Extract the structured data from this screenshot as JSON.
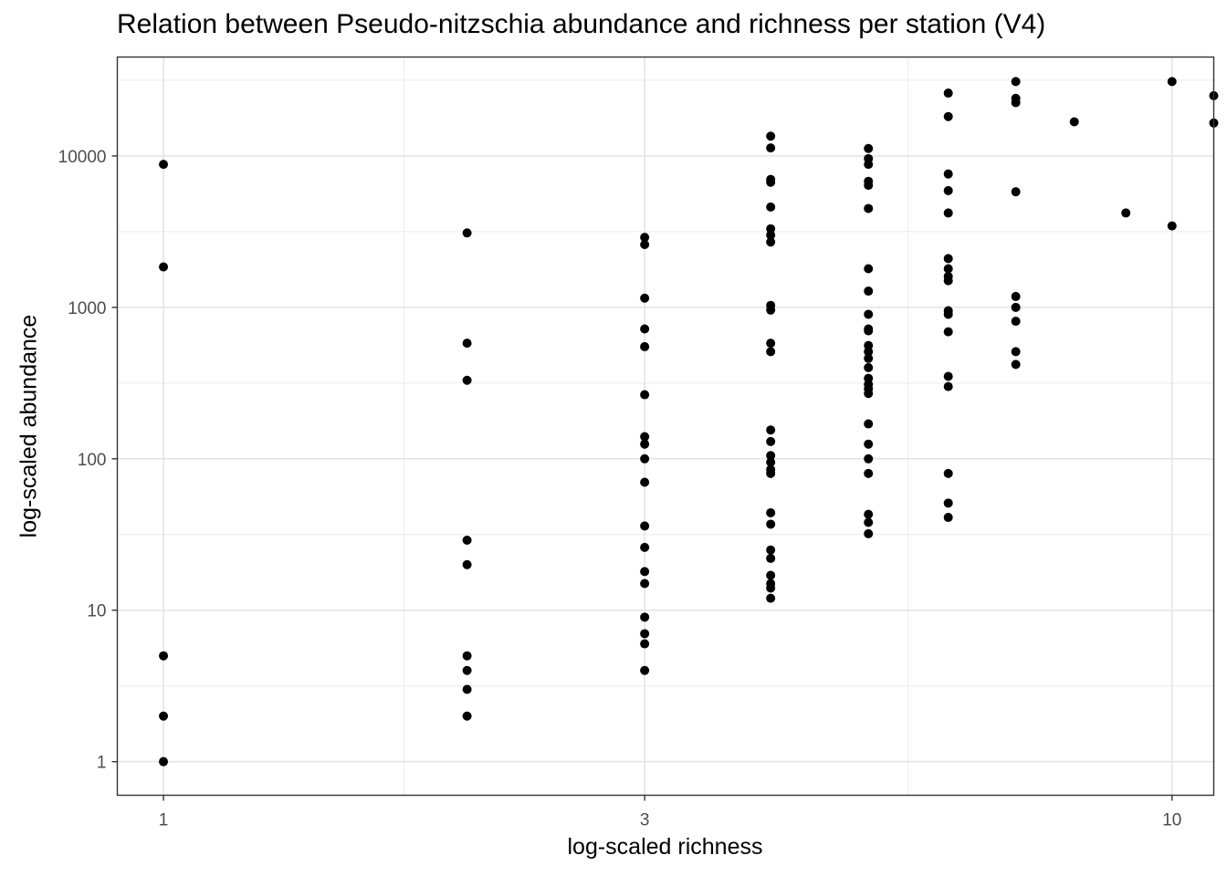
{
  "chart_data": {
    "type": "scatter",
    "title": "Relation between Pseudo-nitzschia abundance and richness per station (V4)",
    "xlabel": "log-scaled richness",
    "ylabel": "log-scaled abundance",
    "x_scale": "log10",
    "y_scale": "log10",
    "xlim": [
      0.9,
      11.0
    ],
    "ylim": [
      0.6,
      45000
    ],
    "x_ticks": [
      1,
      3,
      10
    ],
    "x_tick_labels": [
      "1",
      "3",
      "10"
    ],
    "y_ticks": [
      1,
      10,
      100,
      1000,
      10000
    ],
    "y_tick_labels": [
      "1",
      "10",
      "100",
      "1000",
      "10000"
    ],
    "grid": true,
    "point_color": "#000000",
    "series": [
      {
        "points": [
          [
            1,
            8800
          ],
          [
            1,
            1850
          ],
          [
            1,
            5
          ],
          [
            1,
            2
          ],
          [
            1,
            1
          ],
          [
            2,
            3100
          ],
          [
            2,
            580
          ],
          [
            2,
            330
          ],
          [
            2,
            29
          ],
          [
            2,
            20
          ],
          [
            2,
            5
          ],
          [
            2,
            4
          ],
          [
            2,
            3
          ],
          [
            2,
            2
          ],
          [
            3,
            2900
          ],
          [
            3,
            2600
          ],
          [
            3,
            1150
          ],
          [
            3,
            720
          ],
          [
            3,
            550
          ],
          [
            3,
            265
          ],
          [
            3,
            140
          ],
          [
            3,
            125
          ],
          [
            3,
            100
          ],
          [
            3,
            70
          ],
          [
            3,
            36
          ],
          [
            3,
            26
          ],
          [
            3,
            18
          ],
          [
            3,
            15
          ],
          [
            3,
            9
          ],
          [
            3,
            7
          ],
          [
            3,
            6
          ],
          [
            3,
            4
          ],
          [
            4,
            13500
          ],
          [
            4,
            11300
          ],
          [
            4,
            7000
          ],
          [
            4,
            6700
          ],
          [
            4,
            4600
          ],
          [
            4,
            3300
          ],
          [
            4,
            3000
          ],
          [
            4,
            2700
          ],
          [
            4,
            1030
          ],
          [
            4,
            960
          ],
          [
            4,
            580
          ],
          [
            4,
            510
          ],
          [
            4,
            155
          ],
          [
            4,
            130
          ],
          [
            4,
            105
          ],
          [
            4,
            95
          ],
          [
            4,
            85
          ],
          [
            4,
            80
          ],
          [
            4,
            44
          ],
          [
            4,
            37
          ],
          [
            4,
            25
          ],
          [
            4,
            22
          ],
          [
            4,
            17
          ],
          [
            4,
            15
          ],
          [
            4,
            14
          ],
          [
            4,
            12
          ],
          [
            5,
            11200
          ],
          [
            5,
            9600
          ],
          [
            5,
            8800
          ],
          [
            5,
            6800
          ],
          [
            5,
            6400
          ],
          [
            5,
            4500
          ],
          [
            5,
            1800
          ],
          [
            5,
            1280
          ],
          [
            5,
            900
          ],
          [
            5,
            720
          ],
          [
            5,
            700
          ],
          [
            5,
            560
          ],
          [
            5,
            510
          ],
          [
            5,
            460
          ],
          [
            5,
            400
          ],
          [
            5,
            340
          ],
          [
            5,
            310
          ],
          [
            5,
            290
          ],
          [
            5,
            270
          ],
          [
            5,
            170
          ],
          [
            5,
            125
          ],
          [
            5,
            100
          ],
          [
            5,
            80
          ],
          [
            5,
            43
          ],
          [
            5,
            38
          ],
          [
            5,
            32
          ],
          [
            6,
            26000
          ],
          [
            6,
            18200
          ],
          [
            6,
            7600
          ],
          [
            6,
            5900
          ],
          [
            6,
            4200
          ],
          [
            6,
            2100
          ],
          [
            6,
            1800
          ],
          [
            6,
            1600
          ],
          [
            6,
            1500
          ],
          [
            6,
            950
          ],
          [
            6,
            900
          ],
          [
            6,
            690
          ],
          [
            6,
            350
          ],
          [
            6,
            300
          ],
          [
            6,
            80
          ],
          [
            6,
            51
          ],
          [
            6,
            41
          ],
          [
            7,
            31000
          ],
          [
            7,
            24000
          ],
          [
            7,
            22500
          ],
          [
            7,
            5800
          ],
          [
            7,
            1180
          ],
          [
            7,
            1000
          ],
          [
            7,
            810
          ],
          [
            7,
            510
          ],
          [
            7,
            420
          ],
          [
            8,
            16800
          ],
          [
            9,
            4200
          ],
          [
            10,
            31000
          ],
          [
            10,
            3450
          ],
          [
            11,
            25000
          ],
          [
            11,
            16500
          ]
        ]
      }
    ]
  }
}
